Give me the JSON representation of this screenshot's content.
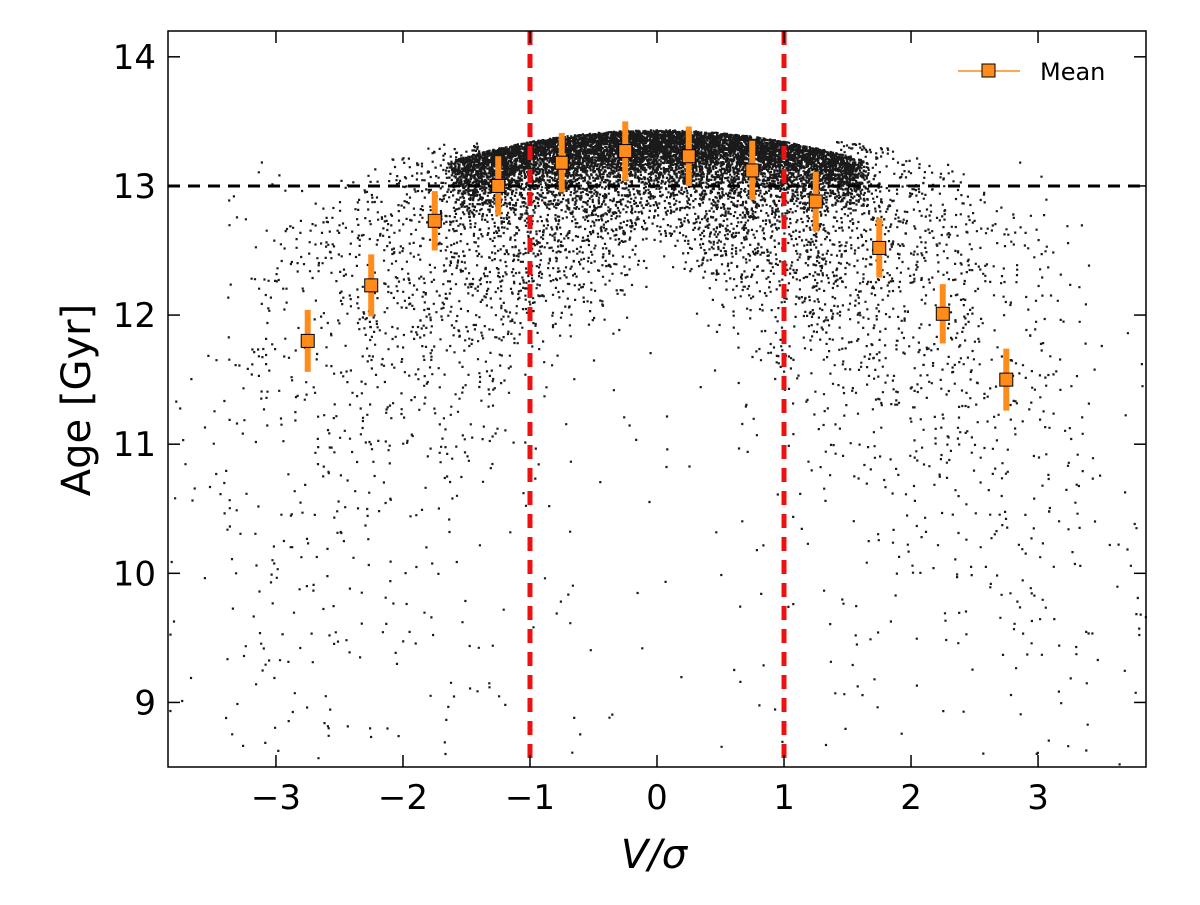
{
  "chart_data": {
    "type": "scatter",
    "title": "",
    "xlabel": "V/σ",
    "ylabel": "Age [Gyr]",
    "xlim": [
      -3.85,
      3.85
    ],
    "ylim": [
      8.5,
      14.2
    ],
    "xticks": [
      -3,
      -2,
      -1,
      0,
      1,
      2,
      3
    ],
    "xtick_labels": [
      "−3",
      "−2",
      "−1",
      "0",
      "1",
      "2",
      "3"
    ],
    "yticks": [
      9,
      10,
      11,
      12,
      13,
      14
    ],
    "ytick_labels": [
      "9",
      "10",
      "11",
      "12",
      "13",
      "14"
    ],
    "grid": false,
    "legend": {
      "position": "top-right",
      "entries": [
        "Mean"
      ]
    },
    "reference_lines": {
      "horizontal": [
        {
          "y": 13.0,
          "color": "#000000",
          "style": "dashed"
        }
      ],
      "vertical": [
        {
          "x": -1.0,
          "color": "#ee1111",
          "style": "dashed"
        },
        {
          "x": 1.0,
          "color": "#ee1111",
          "style": "dashed"
        }
      ]
    },
    "series": [
      {
        "name": "Mean",
        "kind": "errorbar",
        "color": "#ff8c1a",
        "x": [
          -2.75,
          -2.25,
          -1.75,
          -1.25,
          -0.75,
          -0.25,
          0.25,
          0.75,
          1.25,
          1.75,
          2.25,
          2.75
        ],
        "y": [
          11.8,
          12.23,
          12.73,
          13.0,
          13.18,
          13.27,
          13.23,
          13.12,
          12.88,
          12.52,
          12.01,
          11.5
        ],
        "yerr": [
          0.24,
          0.24,
          0.23,
          0.23,
          0.23,
          0.23,
          0.23,
          0.23,
          0.23,
          0.23,
          0.23,
          0.24
        ]
      },
      {
        "name": "stars",
        "kind": "scatter-cloud",
        "color": "#000000",
        "description_points_approx": 12000
      }
    ]
  }
}
